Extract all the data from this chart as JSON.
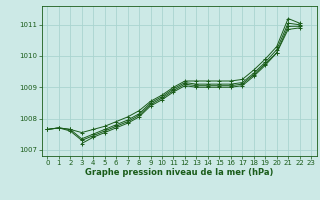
{
  "title": "Graphe pression niveau de la mer (hPa)",
  "bg_color": "#cce9e6",
  "grid_color": "#aad4d0",
  "line_color": "#1a5c1a",
  "xlim": [
    -0.5,
    23.5
  ],
  "ylim": [
    1006.8,
    1011.6
  ],
  "yticks": [
    1007,
    1008,
    1009,
    1010,
    1011
  ],
  "xticks": [
    0,
    1,
    2,
    3,
    4,
    5,
    6,
    7,
    8,
    9,
    10,
    11,
    12,
    13,
    14,
    15,
    16,
    17,
    18,
    19,
    20,
    21,
    22,
    23
  ],
  "series": [
    [
      1007.65,
      1007.7,
      1007.65,
      1007.55,
      1007.65,
      1007.75,
      1007.9,
      1008.05,
      1008.25,
      1008.55,
      1008.75,
      1009.0,
      1009.2,
      1009.2,
      1009.2,
      1009.2,
      1009.2,
      1009.25,
      1009.55,
      1009.9,
      1010.3,
      1011.2,
      1011.05,
      null
    ],
    [
      1007.65,
      1007.7,
      1007.65,
      1007.35,
      1007.5,
      1007.65,
      1007.8,
      1007.95,
      1008.15,
      1008.5,
      1008.7,
      1008.95,
      1009.15,
      1009.1,
      1009.1,
      1009.1,
      1009.1,
      1009.15,
      1009.45,
      1009.8,
      1010.2,
      1011.05,
      1011.0,
      null
    ],
    [
      1007.65,
      1007.7,
      1007.6,
      1007.3,
      1007.45,
      1007.6,
      1007.75,
      1007.9,
      1008.1,
      1008.45,
      1008.65,
      1008.9,
      1009.1,
      1009.05,
      1009.05,
      1009.05,
      1009.05,
      1009.1,
      1009.4,
      1009.75,
      1010.1,
      1010.95,
      1010.95,
      null
    ],
    [
      null,
      null,
      null,
      1007.2,
      1007.4,
      1007.55,
      1007.7,
      1007.85,
      1008.05,
      1008.4,
      1008.6,
      1008.85,
      1009.05,
      1009.0,
      1009.0,
      1009.0,
      1009.0,
      1009.05,
      1009.35,
      1009.7,
      1010.1,
      1010.85,
      1010.9,
      null
    ]
  ]
}
